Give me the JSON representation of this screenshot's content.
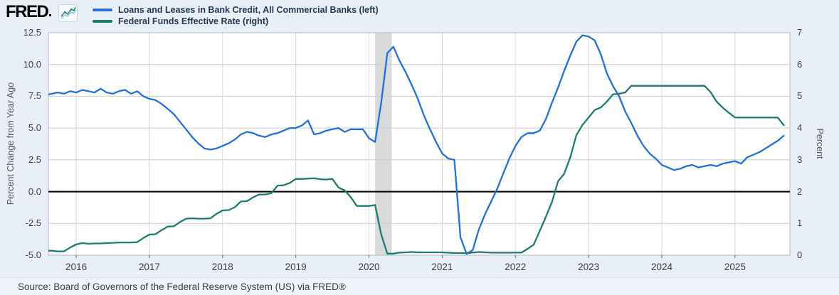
{
  "header": {
    "logo_text": "FRED",
    "legend": [
      {
        "label": "Loans and Leases in Bank Credit, All Commercial Banks (left)",
        "color": "#1f72dd"
      },
      {
        "label": "Federal Funds Effective Rate (right)",
        "color": "#1b7d70"
      }
    ]
  },
  "chart_data": {
    "type": "line",
    "x_start": "2015-08",
    "x_step_months": 1,
    "x_ticks": [
      2016,
      2017,
      2018,
      2019,
      2020,
      2021,
      2022,
      2023,
      2024,
      2025
    ],
    "left_axis": {
      "label": "Percent Change from Year Ago",
      "range": [
        -5.0,
        12.5
      ],
      "ticks": [
        12.5,
        10.0,
        7.5,
        5.0,
        2.5,
        0.0,
        -2.5,
        -5.0
      ]
    },
    "right_axis": {
      "label": "Percent",
      "range": [
        0,
        7
      ],
      "ticks": [
        7,
        6,
        5,
        4,
        3,
        2,
        1,
        0
      ]
    },
    "zero_line_left_value": 0.0,
    "recession_band": {
      "from": "2020-02",
      "to": "2020-04",
      "color": "#dadada"
    },
    "grid": true,
    "series": [
      {
        "name": "Loans and Leases in Bank Credit, All Commercial Banks",
        "axis": "left",
        "color": "#1f72dd",
        "values": [
          7.6,
          7.7,
          7.8,
          7.7,
          7.9,
          7.8,
          8.0,
          7.9,
          7.8,
          8.1,
          7.8,
          7.7,
          7.9,
          8.0,
          7.7,
          7.9,
          7.5,
          7.3,
          7.2,
          6.9,
          6.5,
          6.1,
          5.5,
          4.9,
          4.3,
          3.8,
          3.4,
          3.3,
          3.4,
          3.6,
          3.8,
          4.1,
          4.5,
          4.7,
          4.6,
          4.4,
          4.3,
          4.5,
          4.6,
          4.8,
          5.0,
          5.0,
          5.2,
          5.6,
          4.5,
          4.6,
          4.8,
          4.9,
          5.0,
          4.7,
          4.9,
          4.9,
          4.9,
          4.2,
          3.9,
          7.0,
          10.9,
          11.4,
          10.3,
          9.4,
          8.4,
          7.3,
          6.0,
          4.9,
          3.9,
          3.0,
          2.6,
          2.5,
          -3.6,
          -4.9,
          -4.6,
          -3.0,
          -1.8,
          -0.8,
          0.2,
          1.4,
          2.6,
          3.6,
          4.3,
          4.6,
          4.6,
          4.8,
          5.7,
          7.0,
          8.2,
          9.5,
          10.7,
          11.8,
          12.3,
          12.2,
          11.9,
          10.8,
          9.3,
          8.3,
          7.5,
          6.3,
          5.4,
          4.4,
          3.6,
          3.0,
          2.6,
          2.1,
          1.9,
          1.7,
          1.8,
          2.0,
          2.1,
          1.9,
          2.0,
          2.1,
          2.0,
          2.2,
          2.3,
          2.4,
          2.2,
          2.7,
          2.9,
          3.1,
          3.4,
          3.7,
          4.0,
          4.4
        ]
      },
      {
        "name": "Federal Funds Effective Rate",
        "axis": "right",
        "color": "#1b7d70",
        "values": [
          0.14,
          0.14,
          0.12,
          0.12,
          0.24,
          0.34,
          0.38,
          0.36,
          0.37,
          0.37,
          0.38,
          0.39,
          0.4,
          0.4,
          0.4,
          0.41,
          0.54,
          0.65,
          0.66,
          0.79,
          0.9,
          0.91,
          1.04,
          1.15,
          1.16,
          1.15,
          1.15,
          1.16,
          1.3,
          1.41,
          1.42,
          1.51,
          1.69,
          1.7,
          1.82,
          1.91,
          1.91,
          1.95,
          2.19,
          2.2,
          2.27,
          2.4,
          2.4,
          2.41,
          2.42,
          2.39,
          2.38,
          2.4,
          2.13,
          2.04,
          1.83,
          1.55,
          1.55,
          1.55,
          1.58,
          0.65,
          0.05,
          0.05,
          0.08,
          0.09,
          0.1,
          0.09,
          0.09,
          0.09,
          0.09,
          0.09,
          0.08,
          0.07,
          0.07,
          0.06,
          0.08,
          0.1,
          0.09,
          0.08,
          0.08,
          0.08,
          0.08,
          0.08,
          0.08,
          0.2,
          0.33,
          0.77,
          1.21,
          1.68,
          2.33,
          2.56,
          3.08,
          3.78,
          4.1,
          4.33,
          4.57,
          4.65,
          4.83,
          5.06,
          5.08,
          5.12,
          5.33,
          5.33,
          5.33,
          5.33,
          5.33,
          5.33,
          5.33,
          5.33,
          5.33,
          5.33,
          5.33,
          5.33,
          5.33,
          5.13,
          4.83,
          4.64,
          4.48,
          4.33,
          4.33,
          4.33,
          4.33,
          4.33,
          4.33,
          4.33,
          4.33,
          4.09
        ]
      }
    ]
  },
  "source_line": "Source: Board of Governors of the Federal Reserve System (US) via FRED®"
}
